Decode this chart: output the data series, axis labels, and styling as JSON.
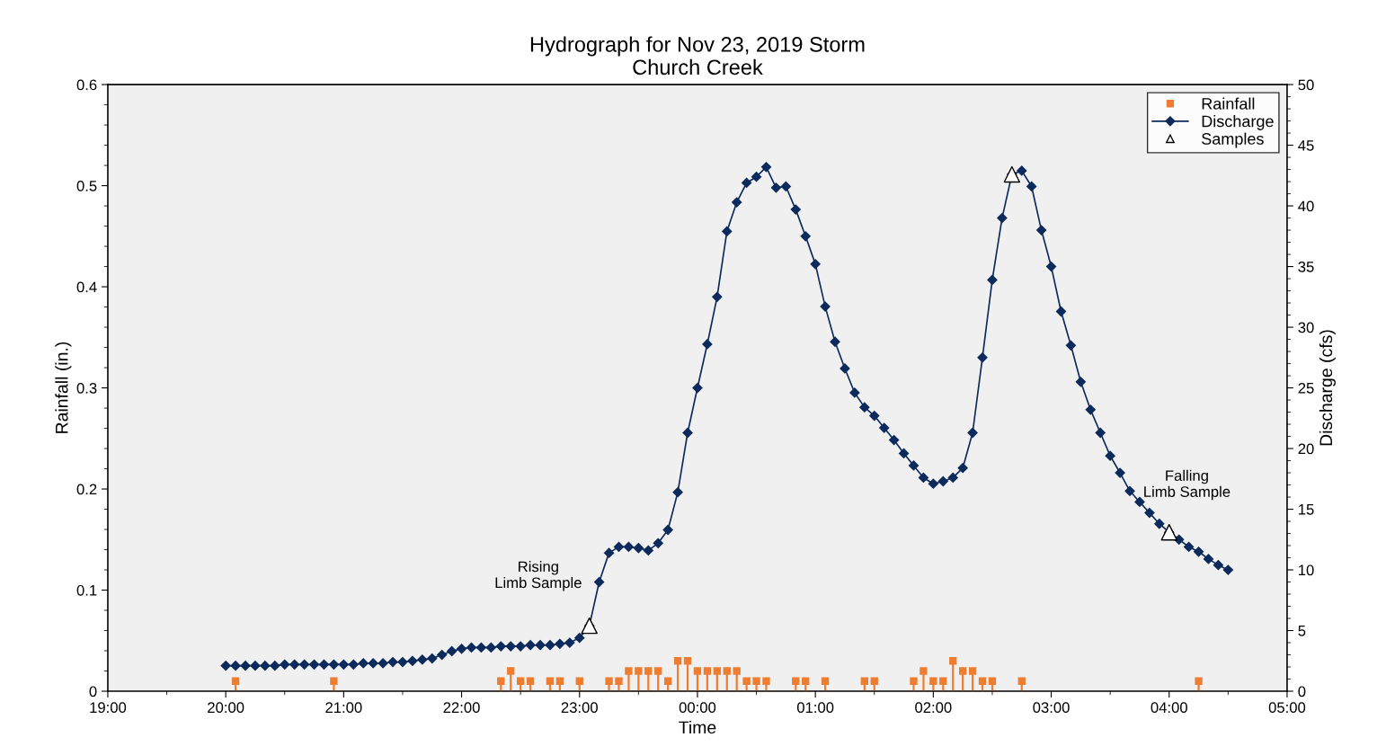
{
  "chart_data": {
    "type": "line",
    "title": "Hydrograph for Nov 23, 2019 Storm",
    "subtitle": "Church Creek",
    "xlabel": "Time",
    "ylabel": "Rainfall (in.)",
    "y2label": "Discharge (cfs)",
    "xlim": [
      "2019-11-23T19:00",
      "2019-11-24T05:00"
    ],
    "xticks": [
      {
        "value": "2019-11-23T19:00",
        "label": "19:00"
      },
      {
        "value": "2019-11-23T20:00",
        "label": "20:00"
      },
      {
        "value": "2019-11-23T21:00",
        "label": "21:00"
      },
      {
        "value": "2019-11-23T22:00",
        "label": "22:00"
      },
      {
        "value": "2019-11-23T23:00",
        "label": "23:00"
      },
      {
        "value": "2019-11-24T00:00",
        "label": "00:00"
      },
      {
        "value": "2019-11-24T01:00",
        "label": "01:00"
      },
      {
        "value": "2019-11-24T02:00",
        "label": "02:00"
      },
      {
        "value": "2019-11-24T03:00",
        "label": "03:00"
      },
      {
        "value": "2019-11-24T04:00",
        "label": "04:00"
      },
      {
        "value": "2019-11-24T05:00",
        "label": "05:00"
      }
    ],
    "ylim": [
      0,
      0.6
    ],
    "yticks": [
      0,
      0.1,
      0.2,
      0.3,
      0.4,
      0.5,
      0.6
    ],
    "y2lim": [
      0,
      50
    ],
    "y2ticks": [
      0,
      5,
      10,
      15,
      20,
      25,
      30,
      35,
      40,
      45,
      50
    ],
    "grid": false,
    "legend": "top right",
    "series": [
      {
        "name": "Rainfall",
        "type": "lollipop",
        "marker": "square",
        "color": "#ed7d31",
        "x": [
          "2019-11-23T20:05",
          "2019-11-23T20:55",
          "2019-11-23T22:20",
          "2019-11-23T22:25",
          "2019-11-23T22:30",
          "2019-11-23T22:35",
          "2019-11-23T22:45",
          "2019-11-23T22:50",
          "2019-11-23T23:00",
          "2019-11-23T23:15",
          "2019-11-23T23:20",
          "2019-11-23T23:25",
          "2019-11-23T23:30",
          "2019-11-23T23:35",
          "2019-11-23T23:40",
          "2019-11-23T23:45",
          "2019-11-23T23:50",
          "2019-11-23T23:55",
          "2019-11-24T00:00",
          "2019-11-24T00:05",
          "2019-11-24T00:10",
          "2019-11-24T00:15",
          "2019-11-24T00:20",
          "2019-11-24T00:25",
          "2019-11-24T00:30",
          "2019-11-24T00:35",
          "2019-11-24T00:50",
          "2019-11-24T00:55",
          "2019-11-24T01:05",
          "2019-11-24T01:25",
          "2019-11-24T01:30",
          "2019-11-24T01:50",
          "2019-11-24T01:55",
          "2019-11-24T02:00",
          "2019-11-24T02:05",
          "2019-11-24T02:10",
          "2019-11-24T02:15",
          "2019-11-24T02:20",
          "2019-11-24T02:25",
          "2019-11-24T02:30",
          "2019-11-24T02:45",
          "2019-11-24T04:15"
        ],
        "values": [
          0.01,
          0.01,
          0.01,
          0.02,
          0.01,
          0.01,
          0.01,
          0.01,
          0.01,
          0.01,
          0.01,
          0.02,
          0.02,
          0.02,
          0.02,
          0.01,
          0.03,
          0.03,
          0.02,
          0.02,
          0.02,
          0.02,
          0.02,
          0.01,
          0.01,
          0.01,
          0.01,
          0.01,
          0.01,
          0.01,
          0.01,
          0.01,
          0.02,
          0.01,
          0.01,
          0.03,
          0.02,
          0.02,
          0.01,
          0.01,
          0.01,
          0.01
        ]
      },
      {
        "name": "Discharge",
        "axis": "y2",
        "marker": "diamond",
        "line_style": "solid",
        "color": "#0d2a5c",
        "x": [
          "2019-11-23T20:00",
          "2019-11-23T20:05",
          "2019-11-23T20:10",
          "2019-11-23T20:15",
          "2019-11-23T20:20",
          "2019-11-23T20:25",
          "2019-11-23T20:30",
          "2019-11-23T20:35",
          "2019-11-23T20:40",
          "2019-11-23T20:45",
          "2019-11-23T20:50",
          "2019-11-23T20:55",
          "2019-11-23T21:00",
          "2019-11-23T21:05",
          "2019-11-23T21:10",
          "2019-11-23T21:15",
          "2019-11-23T21:20",
          "2019-11-23T21:25",
          "2019-11-23T21:30",
          "2019-11-23T21:35",
          "2019-11-23T21:40",
          "2019-11-23T21:45",
          "2019-11-23T21:50",
          "2019-11-23T21:55",
          "2019-11-23T22:00",
          "2019-11-23T22:05",
          "2019-11-23T22:10",
          "2019-11-23T22:15",
          "2019-11-23T22:20",
          "2019-11-23T22:25",
          "2019-11-23T22:30",
          "2019-11-23T22:35",
          "2019-11-23T22:40",
          "2019-11-23T22:45",
          "2019-11-23T22:50",
          "2019-11-23T22:55",
          "2019-11-23T23:00",
          "2019-11-23T23:05",
          "2019-11-23T23:10",
          "2019-11-23T23:15",
          "2019-11-23T23:20",
          "2019-11-23T23:25",
          "2019-11-23T23:30",
          "2019-11-23T23:35",
          "2019-11-23T23:40",
          "2019-11-23T23:45",
          "2019-11-23T23:50",
          "2019-11-23T23:55",
          "2019-11-24T00:00",
          "2019-11-24T00:05",
          "2019-11-24T00:10",
          "2019-11-24T00:15",
          "2019-11-24T00:20",
          "2019-11-24T00:25",
          "2019-11-24T00:30",
          "2019-11-24T00:35",
          "2019-11-24T00:40",
          "2019-11-24T00:45",
          "2019-11-24T00:50",
          "2019-11-24T00:55",
          "2019-11-24T01:00",
          "2019-11-24T01:05",
          "2019-11-24T01:10",
          "2019-11-24T01:15",
          "2019-11-24T01:20",
          "2019-11-24T01:25",
          "2019-11-24T01:30",
          "2019-11-24T01:35",
          "2019-11-24T01:40",
          "2019-11-24T01:45",
          "2019-11-24T01:50",
          "2019-11-24T01:55",
          "2019-11-24T02:00",
          "2019-11-24T02:05",
          "2019-11-24T02:10",
          "2019-11-24T02:15",
          "2019-11-24T02:20",
          "2019-11-24T02:25",
          "2019-11-24T02:30",
          "2019-11-24T02:35",
          "2019-11-24T02:40",
          "2019-11-24T02:45",
          "2019-11-24T02:50",
          "2019-11-24T02:55",
          "2019-11-24T03:00",
          "2019-11-24T03:05",
          "2019-11-24T03:10",
          "2019-11-24T03:15",
          "2019-11-24T03:20",
          "2019-11-24T03:25",
          "2019-11-24T03:30",
          "2019-11-24T03:35",
          "2019-11-24T03:40",
          "2019-11-24T03:45",
          "2019-11-24T03:50",
          "2019-11-24T03:55",
          "2019-11-24T04:00",
          "2019-11-24T04:05",
          "2019-11-24T04:10",
          "2019-11-24T04:15",
          "2019-11-24T04:20",
          "2019-11-24T04:25",
          "2019-11-24T04:30"
        ],
        "values": [
          2.1,
          2.1,
          2.1,
          2.1,
          2.1,
          2.1,
          2.2,
          2.2,
          2.2,
          2.2,
          2.2,
          2.2,
          2.2,
          2.2,
          2.3,
          2.3,
          2.3,
          2.4,
          2.4,
          2.5,
          2.6,
          2.7,
          3.0,
          3.3,
          3.5,
          3.6,
          3.6,
          3.6,
          3.7,
          3.7,
          3.7,
          3.8,
          3.8,
          3.8,
          3.9,
          4.0,
          4.4,
          5.4,
          9.0,
          11.4,
          11.9,
          11.9,
          11.8,
          11.6,
          12.2,
          13.3,
          16.4,
          21.3,
          25.0,
          28.6,
          32.5,
          37.9,
          40.3,
          41.9,
          42.4,
          43.2,
          41.5,
          41.6,
          39.7,
          37.5,
          35.2,
          31.7,
          28.8,
          26.6,
          24.6,
          23.4,
          22.7,
          21.7,
          20.7,
          19.6,
          18.6,
          17.6,
          17.1,
          17.3,
          17.6,
          18.4,
          21.3,
          27.5,
          33.9,
          39.0,
          42.6,
          42.9,
          41.6,
          38.0,
          35.0,
          31.3,
          28.5,
          25.5,
          23.2,
          21.3,
          19.4,
          18.0,
          16.5,
          15.6,
          14.7,
          13.8,
          13.1,
          12.5,
          11.9,
          11.5,
          10.9,
          10.4,
          10.0
        ]
      },
      {
        "name": "Samples",
        "type": "scatter",
        "axis": "y2",
        "marker": "triangle",
        "color": "#000000",
        "x": [
          "2019-11-23T23:05",
          "2019-11-24T02:40",
          "2019-11-24T04:00"
        ],
        "values": [
          5.4,
          42.6,
          13.1
        ]
      }
    ],
    "annotations": [
      "Rising\nLimb Sample",
      "Falling\nLimb Sample"
    ]
  }
}
